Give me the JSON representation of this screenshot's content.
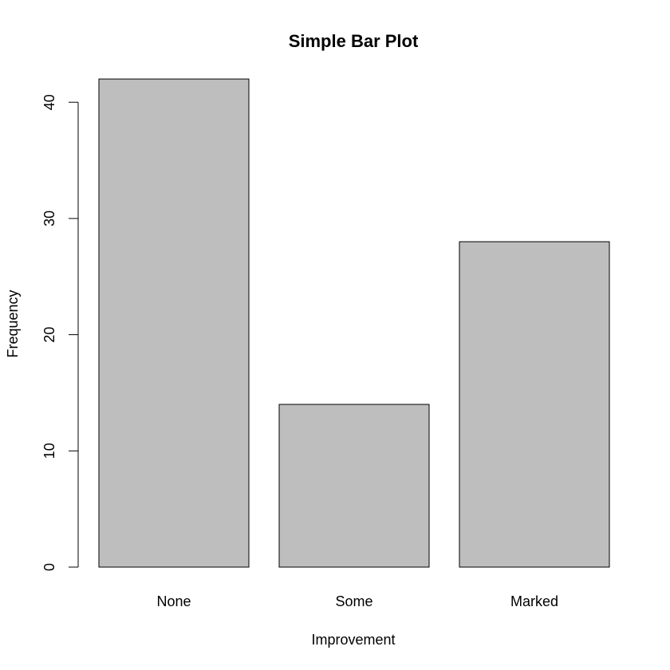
{
  "chart_data": {
    "type": "bar",
    "title": "Simple Bar Plot",
    "xlabel": "Improvement",
    "ylabel": "Frequency",
    "categories": [
      "None",
      "Some",
      "Marked"
    ],
    "values": [
      42,
      14,
      28
    ],
    "yticks": [
      0,
      10,
      20,
      30,
      40
    ],
    "ylim": [
      0,
      42
    ],
    "bar_color": "#bebebe",
    "grid": false,
    "legend": "none"
  }
}
